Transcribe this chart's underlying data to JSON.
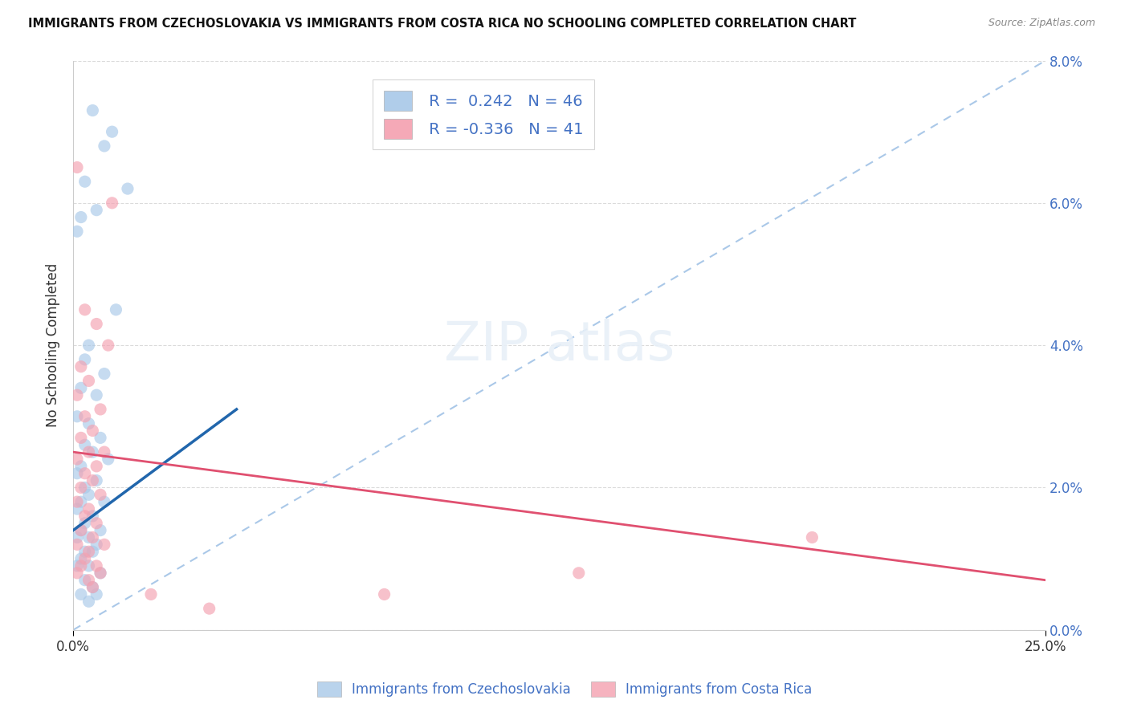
{
  "title": "IMMIGRANTS FROM CZECHOSLOVAKIA VS IMMIGRANTS FROM COSTA RICA NO SCHOOLING COMPLETED CORRELATION CHART",
  "source": "Source: ZipAtlas.com",
  "legend_blue_label": "Immigrants from Czechoslovakia",
  "legend_pink_label": "Immigrants from Costa Rica",
  "R_blue": 0.242,
  "N_blue": 46,
  "R_pink": -0.336,
  "N_pink": 41,
  "x_min": 0.0,
  "x_max": 0.25,
  "y_min": 0.0,
  "y_max": 0.08,
  "blue_color": "#a8c8e8",
  "pink_color": "#f4a0b0",
  "blue_line_color": "#2166ac",
  "pink_line_color": "#e05070",
  "ref_line_color": "#aac8e8",
  "background_color": "#ffffff",
  "yticks": [
    0.0,
    0.02,
    0.04,
    0.06,
    0.08
  ],
  "xticks": [
    0.0,
    0.25
  ],
  "blue_dots": [
    [
      0.005,
      0.073
    ],
    [
      0.01,
      0.07
    ],
    [
      0.008,
      0.068
    ],
    [
      0.003,
      0.063
    ],
    [
      0.014,
      0.062
    ],
    [
      0.006,
      0.059
    ],
    [
      0.002,
      0.058
    ],
    [
      0.001,
      0.056
    ],
    [
      0.011,
      0.045
    ],
    [
      0.004,
      0.04
    ],
    [
      0.003,
      0.038
    ],
    [
      0.008,
      0.036
    ],
    [
      0.002,
      0.034
    ],
    [
      0.006,
      0.033
    ],
    [
      0.001,
      0.03
    ],
    [
      0.004,
      0.029
    ],
    [
      0.007,
      0.027
    ],
    [
      0.003,
      0.026
    ],
    [
      0.005,
      0.025
    ],
    [
      0.009,
      0.024
    ],
    [
      0.002,
      0.023
    ],
    [
      0.001,
      0.022
    ],
    [
      0.006,
      0.021
    ],
    [
      0.003,
      0.02
    ],
    [
      0.004,
      0.019
    ],
    [
      0.008,
      0.018
    ],
    [
      0.002,
      0.018
    ],
    [
      0.001,
      0.017
    ],
    [
      0.005,
      0.016
    ],
    [
      0.003,
      0.015
    ],
    [
      0.007,
      0.014
    ],
    [
      0.002,
      0.014
    ],
    [
      0.004,
      0.013
    ],
    [
      0.001,
      0.013
    ],
    [
      0.006,
      0.012
    ],
    [
      0.003,
      0.011
    ],
    [
      0.005,
      0.011
    ],
    [
      0.002,
      0.01
    ],
    [
      0.001,
      0.009
    ],
    [
      0.004,
      0.009
    ],
    [
      0.007,
      0.008
    ],
    [
      0.003,
      0.007
    ],
    [
      0.005,
      0.006
    ],
    [
      0.002,
      0.005
    ],
    [
      0.006,
      0.005
    ],
    [
      0.004,
      0.004
    ]
  ],
  "pink_dots": [
    [
      0.001,
      0.065
    ],
    [
      0.01,
      0.06
    ],
    [
      0.003,
      0.045
    ],
    [
      0.006,
      0.043
    ],
    [
      0.009,
      0.04
    ],
    [
      0.002,
      0.037
    ],
    [
      0.004,
      0.035
    ],
    [
      0.001,
      0.033
    ],
    [
      0.007,
      0.031
    ],
    [
      0.003,
      0.03
    ],
    [
      0.005,
      0.028
    ],
    [
      0.002,
      0.027
    ],
    [
      0.008,
      0.025
    ],
    [
      0.004,
      0.025
    ],
    [
      0.001,
      0.024
    ],
    [
      0.006,
      0.023
    ],
    [
      0.003,
      0.022
    ],
    [
      0.005,
      0.021
    ],
    [
      0.002,
      0.02
    ],
    [
      0.007,
      0.019
    ],
    [
      0.001,
      0.018
    ],
    [
      0.004,
      0.017
    ],
    [
      0.003,
      0.016
    ],
    [
      0.006,
      0.015
    ],
    [
      0.002,
      0.014
    ],
    [
      0.005,
      0.013
    ],
    [
      0.008,
      0.012
    ],
    [
      0.001,
      0.012
    ],
    [
      0.004,
      0.011
    ],
    [
      0.003,
      0.01
    ],
    [
      0.006,
      0.009
    ],
    [
      0.002,
      0.009
    ],
    [
      0.007,
      0.008
    ],
    [
      0.001,
      0.008
    ],
    [
      0.004,
      0.007
    ],
    [
      0.005,
      0.006
    ],
    [
      0.02,
      0.005
    ],
    [
      0.19,
      0.013
    ],
    [
      0.13,
      0.008
    ],
    [
      0.08,
      0.005
    ],
    [
      0.035,
      0.003
    ]
  ],
  "blue_line_x": [
    0.0,
    0.042
  ],
  "blue_line_y": [
    0.014,
    0.031
  ],
  "pink_line_x": [
    0.0,
    0.25
  ],
  "pink_line_y": [
    0.025,
    0.007
  ],
  "ref_line_x": [
    0.0,
    0.25
  ],
  "ref_line_y": [
    0.0,
    0.08
  ]
}
